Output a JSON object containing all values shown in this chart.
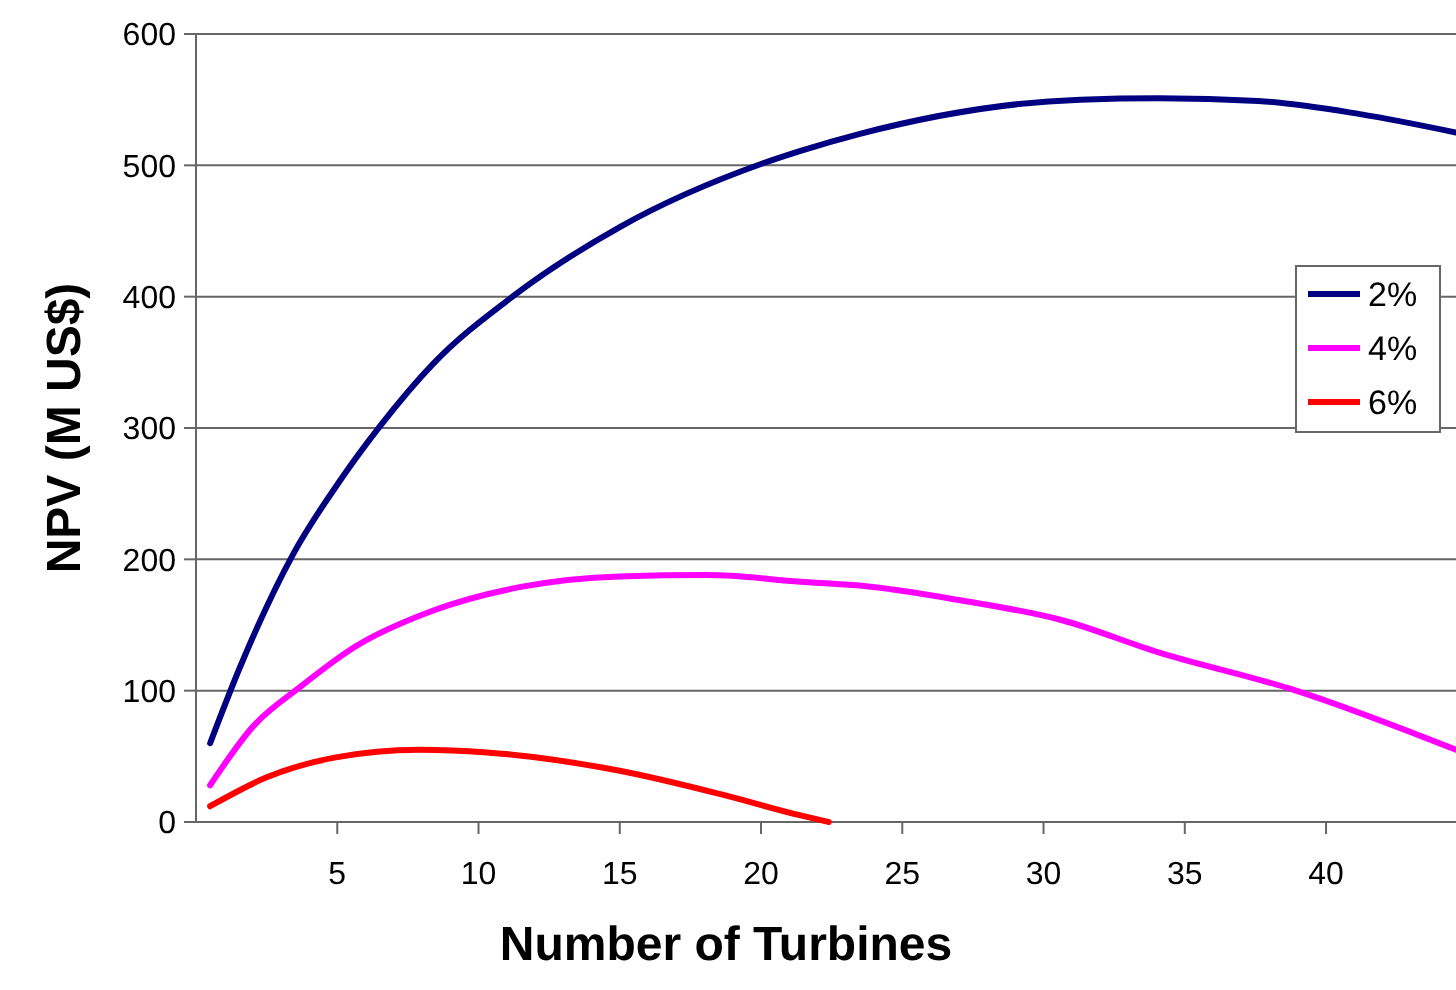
{
  "chart_data": {
    "type": "line",
    "xlabel": "Number of Turbines",
    "ylabel": "NPV (M US$)",
    "xlim": [
      0,
      44.6
    ],
    "xticks": [
      5,
      10,
      15,
      20,
      25,
      30,
      35,
      40
    ],
    "ylim": [
      0,
      600
    ],
    "yticks": [
      0,
      100,
      200,
      300,
      400,
      500,
      600
    ],
    "grid": "y",
    "legend": "right",
    "marker": "none",
    "line_style": "solid",
    "series": [
      {
        "name": "2%",
        "color": "#000080",
        "x": [
          0.5,
          1.56,
          3.44,
          5.1,
          6.5,
          8.4,
          11.2,
          15,
          20,
          21.4,
          23.5,
          31.3,
          34.1,
          37.6,
          41.2,
          44.6
        ],
        "values": [
          60,
          118,
          204,
          260,
          301,
          349,
          400,
          453,
          501,
          511,
          524,
          550,
          551,
          549,
          539,
          525
        ]
      },
      {
        "name": "4%",
        "color": "#ff00ff",
        "x": [
          0.5,
          2.03,
          3.7,
          5.6,
          8.4,
          11.5,
          15,
          18.1,
          21.4,
          23.5,
          27,
          30.6,
          34.1,
          38.8,
          44.6
        ],
        "values": [
          28,
          73,
          103,
          133,
          161,
          179,
          187,
          188,
          183,
          180,
          169,
          154,
          129,
          101,
          55
        ]
      },
      {
        "name": "6%",
        "color": "#ff0000",
        "x": [
          0.5,
          2.5,
          4.9,
          7.9,
          10.3,
          15,
          18.6,
          21.4,
          22.4
        ],
        "values": [
          12,
          34,
          49,
          55,
          53,
          39,
          21,
          5,
          0
        ]
      }
    ]
  }
}
